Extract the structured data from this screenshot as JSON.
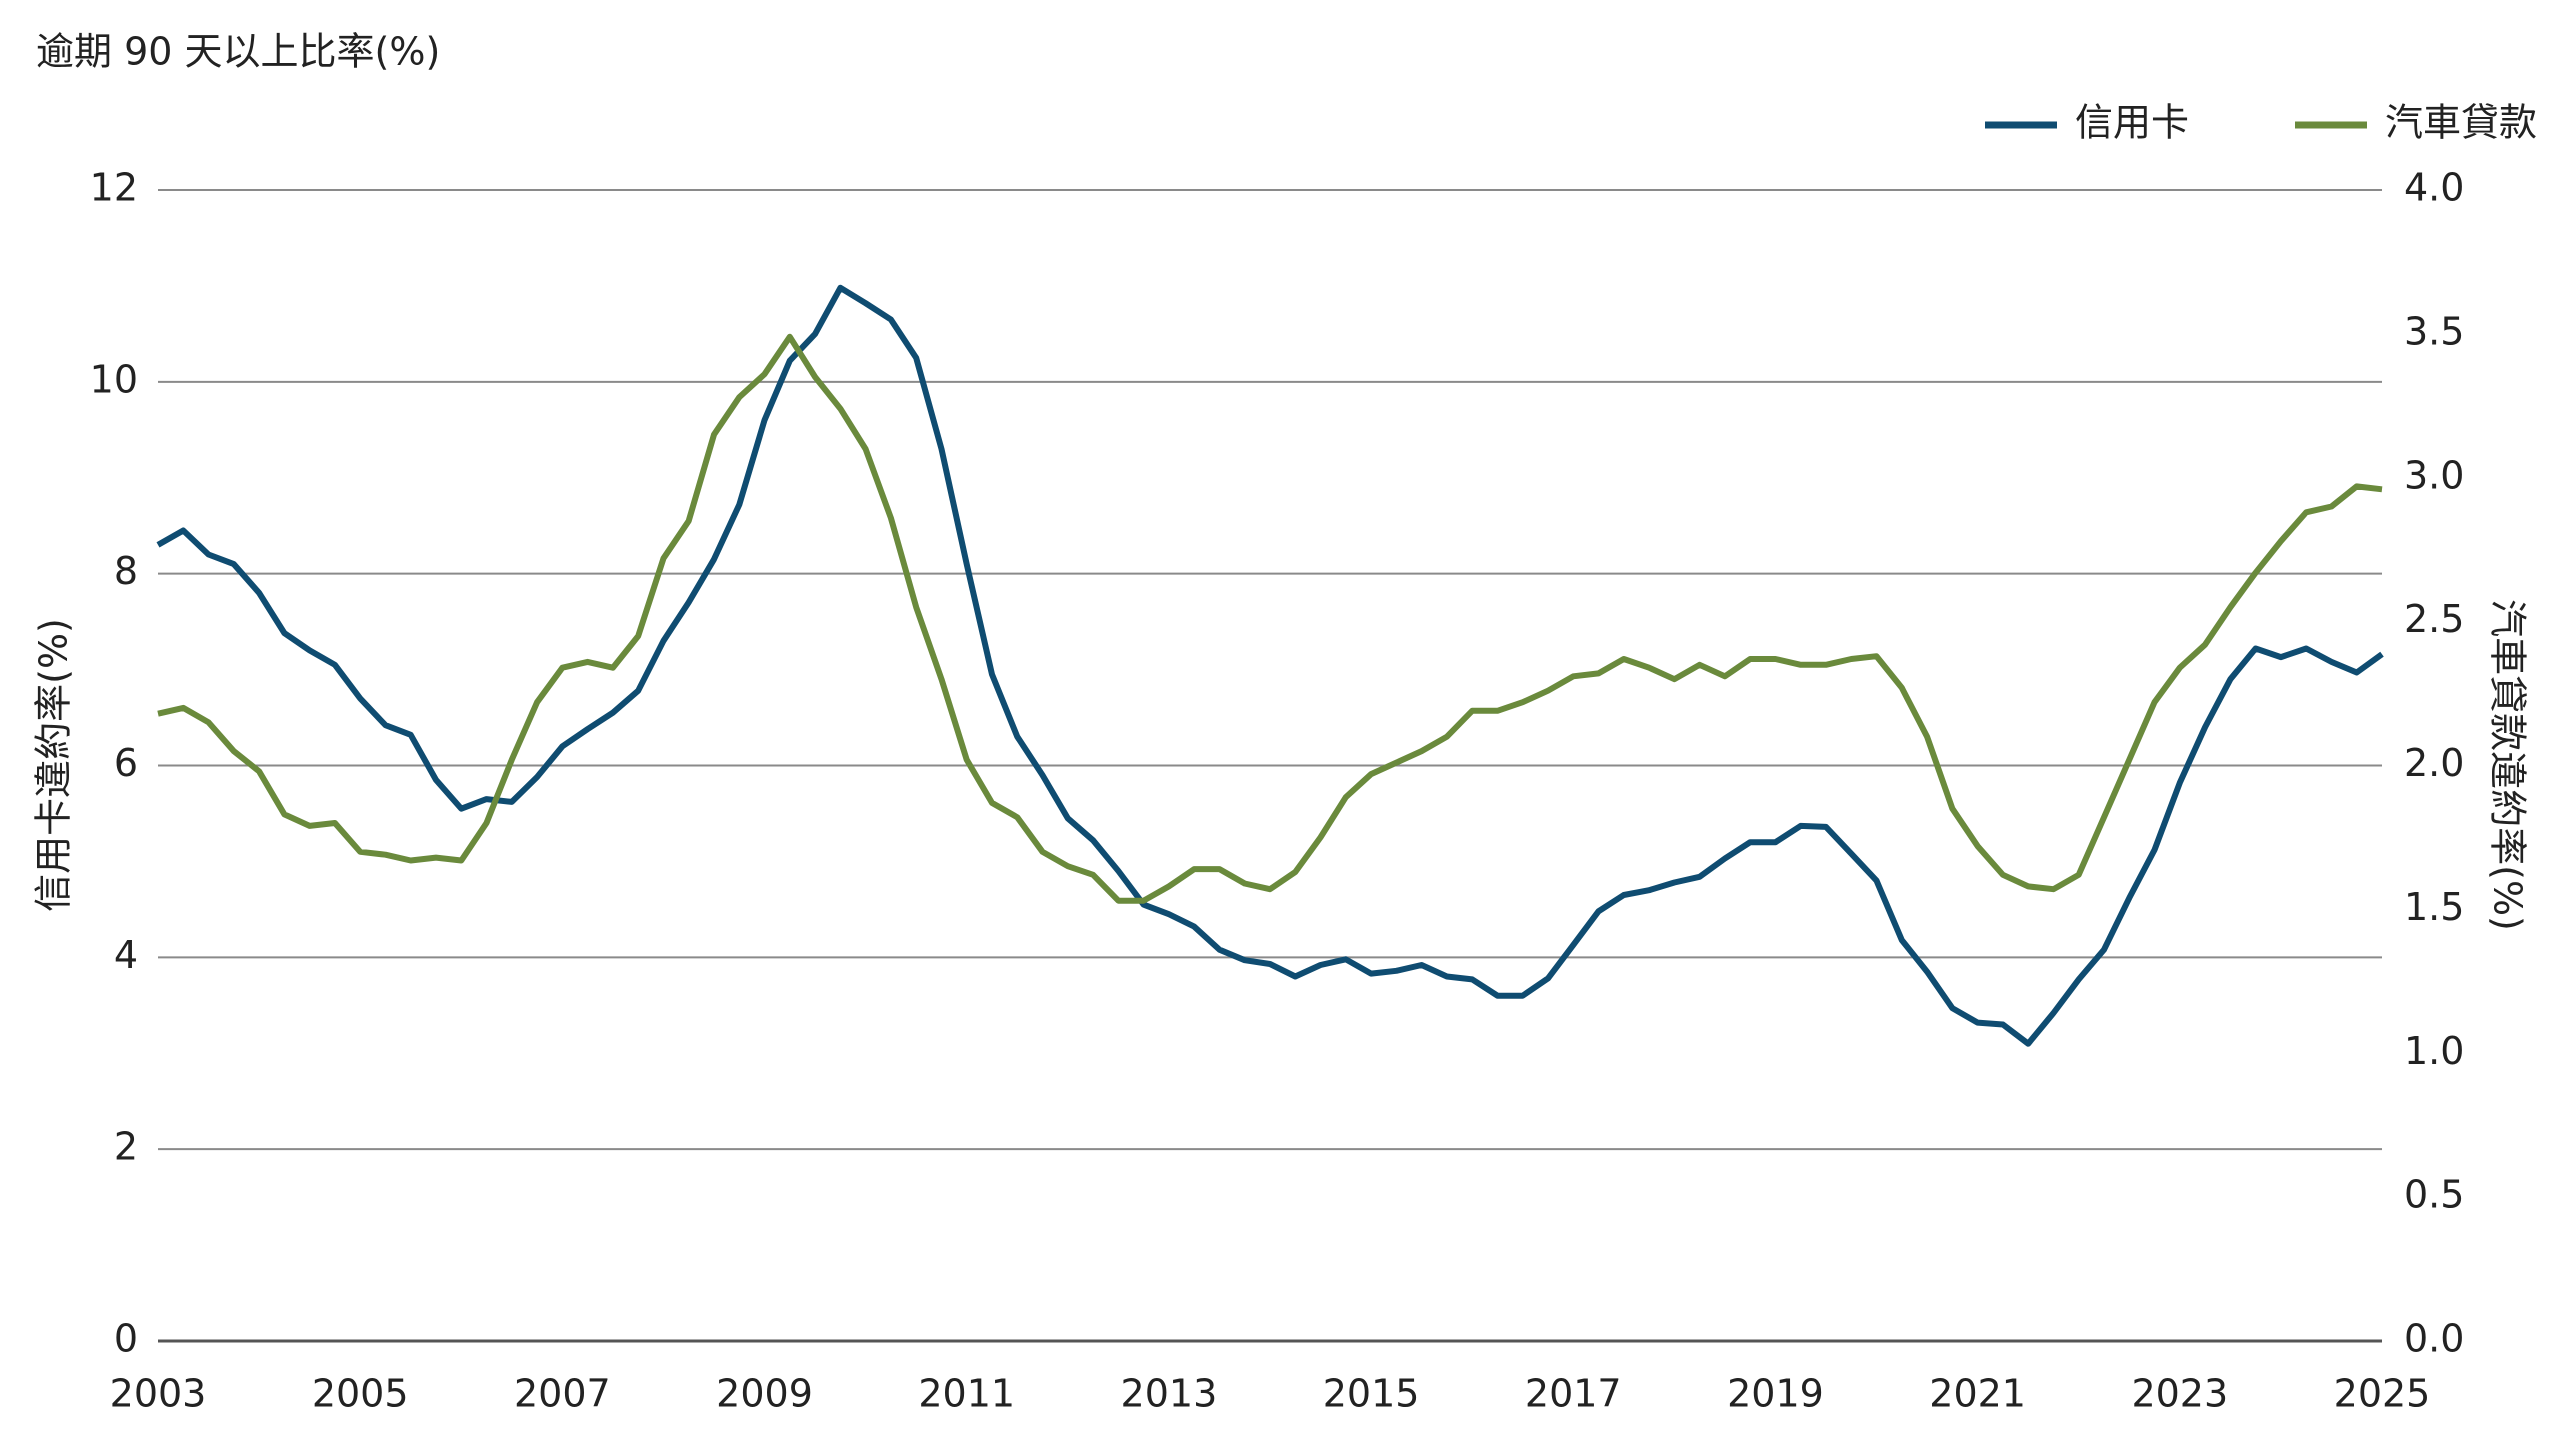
{
  "chart_data": {
    "type": "line",
    "title": "逾期 90 天以上比率(%)",
    "ylabel": "信用卡違約率(%)",
    "y2label": "汽車貸款違約率(%)",
    "x": [
      2003,
      2003.25,
      2003.5,
      2003.75,
      2004,
      2004.25,
      2004.5,
      2004.75,
      2005,
      2005.25,
      2005.5,
      2005.75,
      2006,
      2006.25,
      2006.5,
      2006.75,
      2007,
      2007.25,
      2007.5,
      2007.75,
      2008,
      2008.25,
      2008.5,
      2008.75,
      2009,
      2009.25,
      2009.5,
      2009.75,
      2010,
      2010.25,
      2010.5,
      2010.75,
      2011,
      2011.25,
      2011.5,
      2011.75,
      2012,
      2012.25,
      2012.5,
      2012.75,
      2013,
      2013.25,
      2013.5,
      2013.75,
      2014,
      2014.25,
      2014.5,
      2014.75,
      2015,
      2015.25,
      2015.5,
      2015.75,
      2016,
      2016.25,
      2016.5,
      2016.75,
      2017,
      2017.25,
      2017.5,
      2017.75,
      2018,
      2018.25,
      2018.5,
      2018.75,
      2019,
      2019.25,
      2019.5,
      2019.75,
      2020,
      2020.25,
      2020.5,
      2020.75,
      2021,
      2021.25,
      2021.5,
      2021.75,
      2022,
      2022.25,
      2022.5,
      2022.75,
      2023,
      2023.25,
      2023.5,
      2023.75,
      2024,
      2024.25,
      2024.5,
      2024.75,
      2025
    ],
    "series": [
      {
        "name": "信用卡",
        "color": "#0f4c71",
        "values": [
          8.3,
          8.45,
          8.2,
          8.1,
          7.8,
          7.38,
          7.2,
          7.05,
          6.7,
          6.42,
          6.32,
          5.85,
          5.55,
          5.65,
          5.62,
          5.88,
          6.2,
          6.38,
          6.55,
          6.78,
          7.3,
          7.7,
          8.15,
          8.72,
          9.6,
          10.22,
          10.5,
          10.98,
          10.82,
          10.65,
          10.25,
          9.3,
          8.1,
          6.95,
          6.3,
          5.9,
          5.45,
          5.22,
          4.9,
          4.55,
          4.45,
          4.32,
          4.08,
          3.97,
          3.93,
          3.8,
          3.92,
          3.98,
          3.83,
          3.86,
          3.92,
          3.8,
          3.77,
          3.6,
          3.6,
          3.78,
          4.13,
          4.48,
          4.65,
          4.7,
          4.78,
          4.84,
          5.03,
          5.2,
          5.2,
          5.37,
          5.36,
          5.08,
          4.8,
          4.18,
          3.85,
          3.47,
          3.32,
          3.3,
          3.1,
          3.42,
          3.77,
          4.08,
          4.62,
          5.12,
          5.82,
          6.4,
          6.9,
          7.22,
          7.13,
          7.22,
          7.08,
          6.97,
          7.16
        ]
      },
      {
        "name": "汽車貸款",
        "color": "#6a8a3c",
        "axis": "y2",
        "values": [
          2.18,
          2.2,
          2.15,
          2.05,
          1.98,
          1.83,
          1.79,
          1.8,
          1.7,
          1.69,
          1.67,
          1.68,
          1.67,
          1.8,
          2.02,
          2.22,
          2.34,
          2.36,
          2.34,
          2.45,
          2.72,
          2.85,
          3.15,
          3.28,
          3.36,
          3.49,
          3.35,
          3.24,
          3.1,
          2.86,
          2.55,
          2.3,
          2.02,
          1.87,
          1.82,
          1.7,
          1.65,
          1.62,
          1.53,
          1.53,
          1.58,
          1.64,
          1.64,
          1.59,
          1.57,
          1.63,
          1.75,
          1.89,
          1.97,
          2.01,
          2.05,
          2.1,
          2.19,
          2.19,
          2.22,
          2.26,
          2.31,
          2.32,
          2.37,
          2.34,
          2.3,
          2.35,
          2.31,
          2.37,
          2.37,
          2.35,
          2.35,
          2.37,
          2.38,
          2.27,
          2.1,
          1.85,
          1.72,
          1.62,
          1.58,
          1.57,
          1.62,
          1.82,
          2.02,
          2.22,
          2.34,
          2.42,
          2.55,
          2.67,
          2.78,
          2.88,
          2.9,
          2.97,
          2.96
        ]
      }
    ],
    "xlim": [
      2003,
      2025
    ],
    "xticks": [
      2003,
      2005,
      2007,
      2009,
      2011,
      2013,
      2015,
      2017,
      2019,
      2021,
      2023,
      2025
    ],
    "ylim": [
      0,
      12
    ],
    "yticks": [
      0,
      2,
      4,
      6,
      8,
      10,
      12
    ],
    "y2lim": [
      0,
      4
    ],
    "y2ticks": [
      {
        "value": 0,
        "label": "0.0"
      },
      0.5,
      {
        "value": 1,
        "label": "1.0"
      },
      1.5,
      {
        "value": 2,
        "label": "2.0"
      },
      2.5,
      {
        "value": 3,
        "label": "3.0"
      },
      3.5,
      {
        "value": 4,
        "label": "4.0"
      }
    ],
    "grid": true,
    "legend": "top-right"
  }
}
